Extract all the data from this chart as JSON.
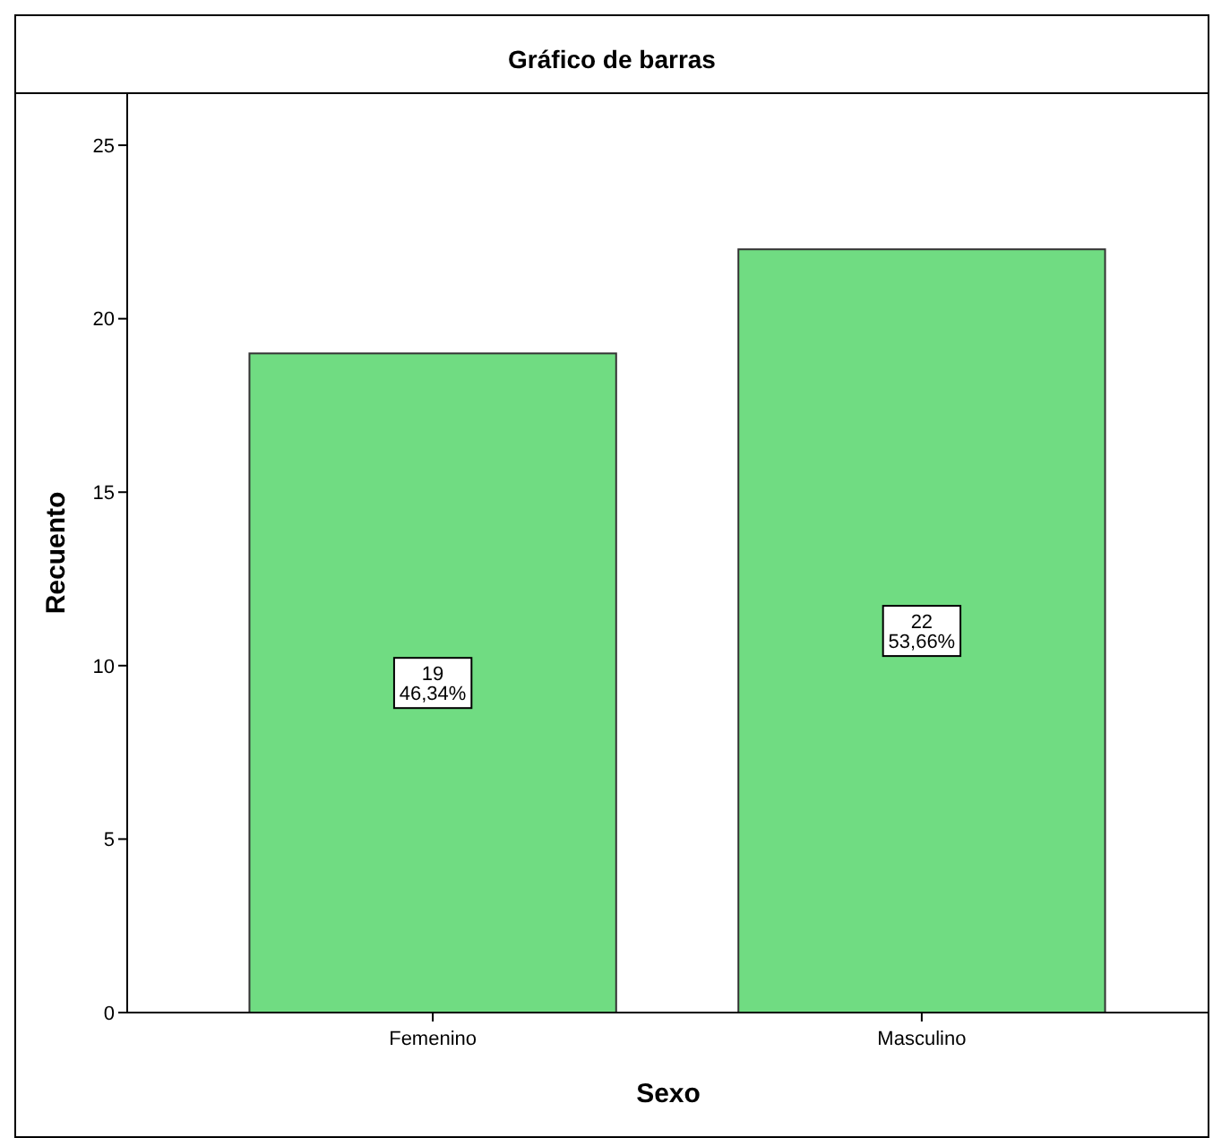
{
  "chart_data": {
    "type": "bar",
    "title": "Gráfico de barras",
    "xlabel": "Sexo",
    "ylabel": "Recuento",
    "categories": [
      "Femenino",
      "Masculino"
    ],
    "values": [
      19,
      22
    ],
    "value_labels": [
      "19\n46,34%",
      "22\n53,66%"
    ],
    "color": "#70dc82",
    "ylim": [
      0,
      26.5
    ],
    "yticks": [
      0,
      5,
      10,
      15,
      20,
      25
    ],
    "grid": false
  }
}
